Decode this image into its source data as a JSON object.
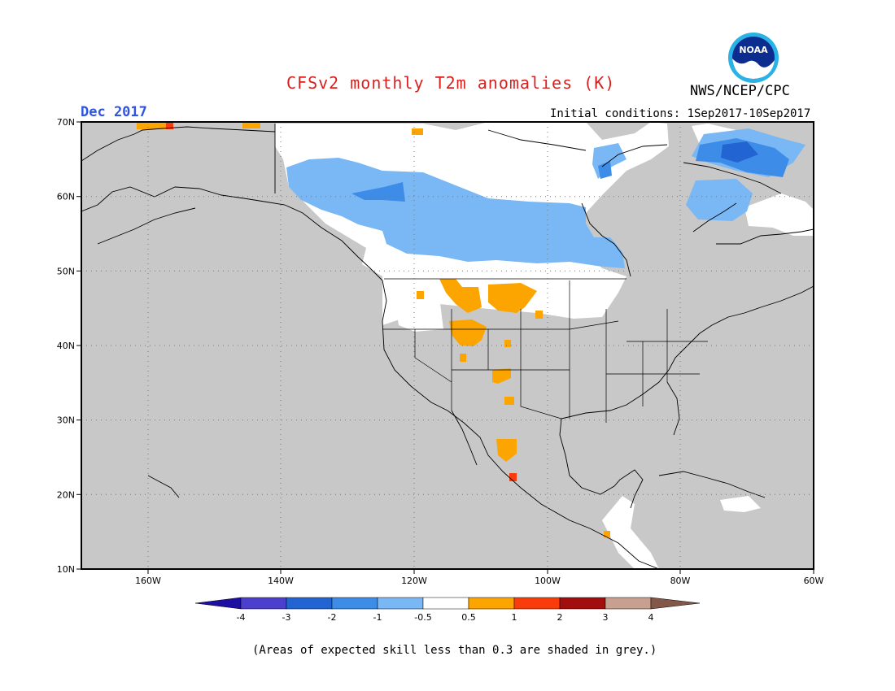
{
  "header": {
    "title": "CFSv2 monthly T2m anomalies (K)",
    "month": "Dec 2017",
    "agency": "NWS/NCEP/CPC",
    "init_conditions": "Initial conditions: 1Sep2017-10Sep2017",
    "logo_text": "NOAA"
  },
  "map": {
    "lat_labels": [
      "70N",
      "60N",
      "50N",
      "40N",
      "30N",
      "20N",
      "10N"
    ],
    "lon_labels": [
      "160W",
      "140W",
      "120W",
      "100W",
      "80W",
      "60W"
    ],
    "lat_range": [
      10,
      70
    ],
    "lon_range": [
      -172,
      -60
    ],
    "grid": "dotted"
  },
  "colorbar": {
    "tick_labels": [
      "-4",
      "-3",
      "-2",
      "-1",
      "-0.5",
      "0.5",
      "1",
      "2",
      "3",
      "4"
    ],
    "colors": [
      "#1e0fa3",
      "#4b3fcc",
      "#2264d2",
      "#3d8ce8",
      "#7ab8f5",
      "#ffffff",
      "#fca400",
      "#fa3c0c",
      "#a20d0d",
      "#c8a090",
      "#845848"
    ]
  },
  "colors": {
    "skill_grey": "#c8c8c8",
    "title_red": "#d8201e",
    "month_blue": "#2f55e0"
  },
  "footnote": "(Areas of expected skill less than 0.3 are shaded in grey.)"
}
